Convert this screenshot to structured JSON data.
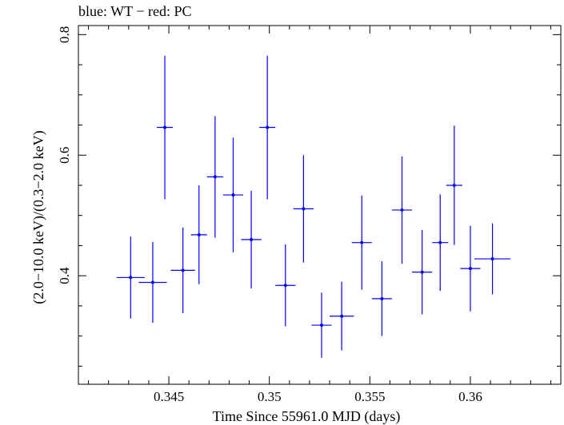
{
  "chart_data": {
    "type": "scatter",
    "title": "blue: WT − red: PC",
    "xlabel": "Time Since 55961.0 MJD (days)",
    "ylabel": "(2.0−10.0 keV)/(0.3−2.0 keV)",
    "xlim": [
      0.3405,
      0.3645
    ],
    "ylim": [
      0.22,
      0.815
    ],
    "xticks": [
      {
        "value": 0.345,
        "label": "0.345"
      },
      {
        "value": 0.35,
        "label": "0.35"
      },
      {
        "value": 0.355,
        "label": "0.355"
      },
      {
        "value": 0.36,
        "label": "0.36"
      }
    ],
    "yticks": [
      {
        "value": 0.4,
        "label": "0.4"
      },
      {
        "value": 0.6,
        "label": "0.6"
      },
      {
        "value": 0.8,
        "label": "0.8"
      }
    ],
    "grid": false,
    "legend": "none",
    "series": [
      {
        "color": "#0000ff",
        "points": [
          {
            "x": 0.3431,
            "y": 0.397,
            "xerr": 0.0007,
            "yerr_low": 0.068,
            "yerr_high": 0.068
          },
          {
            "x": 0.3442,
            "y": 0.389,
            "xerr": 0.0007,
            "yerr_low": 0.067,
            "yerr_high": 0.067
          },
          {
            "x": 0.3448,
            "y": 0.646,
            "xerr": 0.0004,
            "yerr_low": 0.119,
            "yerr_high": 0.119
          },
          {
            "x": 0.3457,
            "y": 0.409,
            "xerr": 0.0006,
            "yerr_low": 0.071,
            "yerr_high": 0.071
          },
          {
            "x": 0.3465,
            "y": 0.468,
            "xerr": 0.0004,
            "yerr_low": 0.082,
            "yerr_high": 0.082
          },
          {
            "x": 0.3473,
            "y": 0.564,
            "xerr": 0.0004,
            "yerr_low": 0.101,
            "yerr_high": 0.101
          },
          {
            "x": 0.3482,
            "y": 0.534,
            "xerr": 0.0005,
            "yerr_low": 0.095,
            "yerr_high": 0.095
          },
          {
            "x": 0.3491,
            "y": 0.46,
            "xerr": 0.0005,
            "yerr_low": 0.081,
            "yerr_high": 0.081
          },
          {
            "x": 0.3499,
            "y": 0.646,
            "xerr": 0.0004,
            "yerr_low": 0.119,
            "yerr_high": 0.119
          },
          {
            "x": 0.3508,
            "y": 0.384,
            "xerr": 0.0005,
            "yerr_low": 0.068,
            "yerr_high": 0.068
          },
          {
            "x": 0.3517,
            "y": 0.511,
            "xerr": 0.0005,
            "yerr_low": 0.089,
            "yerr_high": 0.089
          },
          {
            "x": 0.3526,
            "y": 0.318,
            "xerr": 0.0005,
            "yerr_low": 0.054,
            "yerr_high": 0.054
          },
          {
            "x": 0.3536,
            "y": 0.333,
            "xerr": 0.0006,
            "yerr_low": 0.057,
            "yerr_high": 0.057
          },
          {
            "x": 0.3546,
            "y": 0.455,
            "xerr": 0.0005,
            "yerr_low": 0.078,
            "yerr_high": 0.078
          },
          {
            "x": 0.3556,
            "y": 0.362,
            "xerr": 0.0005,
            "yerr_low": 0.062,
            "yerr_high": 0.062
          },
          {
            "x": 0.3566,
            "y": 0.509,
            "xerr": 0.0005,
            "yerr_low": 0.089,
            "yerr_high": 0.089
          },
          {
            "x": 0.3576,
            "y": 0.406,
            "xerr": 0.0005,
            "yerr_low": 0.07,
            "yerr_high": 0.07
          },
          {
            "x": 0.3585,
            "y": 0.455,
            "xerr": 0.0004,
            "yerr_low": 0.08,
            "yerr_high": 0.08
          },
          {
            "x": 0.3592,
            "y": 0.55,
            "xerr": 0.0004,
            "yerr_low": 0.099,
            "yerr_high": 0.099
          },
          {
            "x": 0.36,
            "y": 0.412,
            "xerr": 0.0005,
            "yerr_low": 0.071,
            "yerr_high": 0.071
          },
          {
            "x": 0.3611,
            "y": 0.428,
            "xerr": 0.0009,
            "yerr_low": 0.059,
            "yerr_high": 0.059
          }
        ]
      }
    ]
  }
}
